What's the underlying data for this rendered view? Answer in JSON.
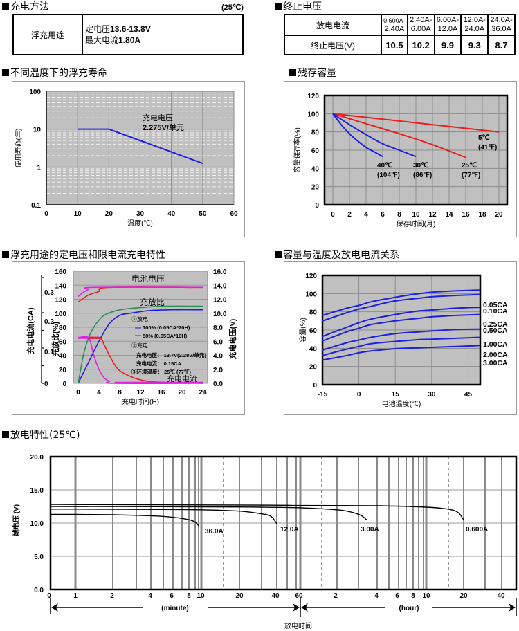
{
  "charging_method": {
    "title": "充电方法",
    "temp_note": "(25℃)",
    "row_label": "浮充用途",
    "line1_label": "定电压",
    "line1_value": "13.6-13.8V",
    "line2_label": "最大电流",
    "line2_value": "1.80A"
  },
  "cutoff_voltage": {
    "title": "终止电压",
    "header_label": "放电电流",
    "row_label": "终止电压(V)",
    "columns": [
      {
        "current_top": "0.600A-",
        "current_bottom": "2.40A",
        "voltage": "10.5"
      },
      {
        "current_top": "2.40A-",
        "current_bottom": "6.00A",
        "voltage": "10.2"
      },
      {
        "current_top": "6.00A-",
        "current_bottom": "12.0A",
        "voltage": "9.9"
      },
      {
        "current_top": "12.0A-",
        "current_bottom": "24.0A",
        "voltage": "9.3"
      },
      {
        "current_top": "24.0A-",
        "current_bottom": "36.0A",
        "voltage": "8.7"
      }
    ]
  },
  "chart_data": [
    {
      "id": "float-life",
      "type": "line",
      "title": "不同温度下的浮充寿命",
      "xlabel": "温度(℃)",
      "ylabel": "使用寿命(年)",
      "yscale": "log",
      "xlim": [
        0,
        60
      ],
      "ylim": [
        0.1,
        100
      ],
      "xticks": [
        "0",
        "10",
        "20",
        "30",
        "40",
        "50",
        "60"
      ],
      "yticks": [
        "0.1",
        "1",
        "10",
        "100"
      ],
      "annotation": [
        "充电电压",
        "2.275V/单元"
      ],
      "series": [
        {
          "name": "life",
          "color": "#1f1fe0",
          "x": [
            10,
            20,
            30,
            40,
            50
          ],
          "y": [
            10,
            10,
            5,
            2.5,
            1.25
          ]
        }
      ]
    },
    {
      "id": "residual-capacity",
      "type": "line",
      "title": "残存容量",
      "xlabel": "保存时间(月)",
      "ylabel": "容量保存率(%)",
      "xlim": [
        0,
        20
      ],
      "ylim": [
        0,
        120
      ],
      "xticks": [
        "0",
        "2",
        "4",
        "6",
        "8",
        "10",
        "12",
        "14",
        "16",
        "18",
        "20"
      ],
      "yticks": [
        "0",
        "20",
        "40",
        "60",
        "80",
        "100",
        "120"
      ],
      "series": [
        {
          "name": "5℃",
          "label2": "(41℉)",
          "color": "#ee1c1c",
          "x": [
            0,
            20
          ],
          "y": [
            100,
            80
          ]
        },
        {
          "name": "25℃",
          "label2": "(77℉)",
          "color": "#ee1c1c",
          "x": [
            0,
            4,
            8,
            12,
            16
          ],
          "y": [
            100,
            89,
            78,
            66,
            52
          ]
        },
        {
          "name": "30℃",
          "label2": "(86℉)",
          "color": "#1f1fe0",
          "x": [
            0,
            2,
            4,
            6,
            8,
            10
          ],
          "y": [
            100,
            88,
            77,
            67,
            60,
            53
          ]
        },
        {
          "name": "40℃",
          "label2": "(104℉)",
          "color": "#1f1fe0",
          "x": [
            0,
            1,
            2,
            3,
            4,
            5,
            6
          ],
          "y": [
            100,
            88,
            78,
            70,
            63,
            58,
            53
          ]
        }
      ]
    },
    {
      "id": "charge-characteristics",
      "type": "line",
      "title": "浮充用途的定电压和限电流充电特性",
      "xlabel": "充电时间(H)",
      "ylabel_left_outer": "充电电流(CA)",
      "ylabel_left": "充放比(%)",
      "ylabel_right": "充电电压(V)",
      "xlim": [
        0,
        24
      ],
      "ylim_left": [
        0,
        160
      ],
      "ylim_right": [
        0,
        16
      ],
      "ylim_current": [
        0,
        0.3
      ],
      "xticks": [
        "0",
        "4",
        "8",
        "12",
        "16",
        "20",
        "24"
      ],
      "yticks_left": [
        "0",
        "20",
        "40",
        "60",
        "80",
        "100",
        "120",
        "140",
        "160"
      ],
      "yticks_right": [
        "0.0",
        "2.0",
        "4.0",
        "6.0",
        "8.0",
        "10.0",
        "12.0",
        "14.0",
        "16.0"
      ],
      "yticks_current": [
        "0",
        "0.1",
        "0.2",
        "0.3"
      ],
      "annotations": {
        "battery_voltage": "电池电压",
        "charge_ratio": "充放比",
        "charge_current": "充电电流",
        "legend_discharge": "①放电",
        "legend_100": "100% (0.05CA*20H)",
        "legend_50": "50% (0.05CA*10H)",
        "legend_charge": "②充电",
        "charge_voltage": "充电电压： 13.7V(2.28V/单元)",
        "charge_current_val": "充电电流： 0.15CA",
        "ambient": "③环境温度： 25℃ (77℉)"
      },
      "series": [
        {
          "name": "voltage-100%",
          "axis": "right",
          "color": "#ee1c1c",
          "x": [
            0,
            2,
            4,
            6,
            24
          ],
          "y": [
            11.6,
            12.6,
            13.1,
            13.7,
            13.7
          ]
        },
        {
          "name": "voltage-50%",
          "axis": "right",
          "color": "#e020e0",
          "x": [
            0,
            1,
            2,
            3,
            24
          ],
          "y": [
            12.4,
            13.0,
            13.4,
            13.7,
            13.7
          ]
        },
        {
          "name": "ratio-100%",
          "axis": "left",
          "color": "#1f1fe0",
          "x": [
            0,
            2,
            4,
            6,
            8,
            10,
            14,
            18,
            24
          ],
          "y": [
            0,
            30,
            60,
            85,
            97,
            100,
            104,
            105,
            105
          ]
        },
        {
          "name": "ratio-50%",
          "axis": "left",
          "color": "#2e8b57",
          "x": [
            0,
            1,
            2,
            3,
            4,
            5,
            7,
            9,
            12,
            16,
            24
          ],
          "y": [
            0,
            40,
            65,
            80,
            90,
            97,
            103,
            106,
            108,
            110,
            110
          ]
        },
        {
          "name": "current-100%",
          "axis": "left",
          "color": "#ee1c1c",
          "x": [
            0,
            4,
            5,
            6,
            7,
            8,
            10,
            12,
            15,
            24
          ],
          "y": [
            65,
            65,
            55,
            40,
            27,
            18,
            10,
            5,
            2,
            0
          ]
        },
        {
          "name": "current-50%",
          "axis": "left",
          "color": "#e020e0",
          "x": [
            0,
            2,
            3,
            4,
            5,
            6,
            7,
            24
          ],
          "y": [
            65,
            65,
            40,
            20,
            8,
            3,
            0,
            0
          ]
        }
      ]
    },
    {
      "id": "capacity-temperature",
      "type": "line",
      "title": "容量与温度及放电电流关系",
      "xlabel": "电池温度(℃)",
      "ylabel": "容量(%)",
      "xlim": [
        -15,
        50
      ],
      "ylim": [
        0,
        120
      ],
      "xticks": [
        "-15",
        "0",
        "15",
        "30",
        "45"
      ],
      "yticks": [
        "0",
        "20",
        "40",
        "60",
        "80",
        "100",
        "120"
      ],
      "x": [
        -15,
        -5,
        0,
        5,
        15,
        25,
        30,
        40,
        50
      ],
      "series": [
        {
          "name": "0.05CA",
          "color": "#1f1fe0",
          "y": [
            76,
            84,
            87,
            91,
            96,
            100,
            101.5,
            103,
            104
          ]
        },
        {
          "name": "0.10CA",
          "color": "#1f1fe0",
          "y": [
            70,
            79,
            83,
            86,
            92,
            95,
            96.5,
            98,
            99
          ]
        },
        {
          "name": "0.25CA",
          "color": "#1f1fe0",
          "y": [
            53,
            63,
            68,
            72,
            77,
            81,
            82,
            84,
            85
          ]
        },
        {
          "name": "0.50CA",
          "color": "#1f1fe0",
          "y": [
            48,
            58,
            62,
            66,
            70,
            73,
            74.5,
            76,
            77
          ]
        },
        {
          "name": "1.00CA",
          "color": "#1f1fe0",
          "y": [
            38,
            46,
            49,
            52,
            56,
            58,
            59,
            60.5,
            61
          ]
        },
        {
          "name": "2.00CA",
          "color": "#1f1fe0",
          "y": [
            32,
            39,
            42,
            45,
            47.5,
            49.5,
            50,
            51,
            52
          ]
        },
        {
          "name": "3.00CA",
          "color": "#1f1fe0",
          "y": [
            27,
            32,
            35,
            37,
            39.5,
            40.5,
            41,
            42,
            43
          ]
        }
      ]
    },
    {
      "id": "discharge-characteristics",
      "type": "line",
      "title": "放电特性(25℃)",
      "xlabel": "放电时间",
      "ylabel": "端电压 (V)",
      "xscale": "log-minutes-then-hours",
      "ylim": [
        0,
        20
      ],
      "yticks": [
        "0.0",
        "5.0",
        "10.0",
        "15.0",
        "20.0"
      ],
      "xticks_minute": [
        "0",
        "1",
        "2",
        "4",
        "6",
        "8",
        "10",
        "20",
        "40",
        "60"
      ],
      "xticks_hour": [
        "2",
        "4",
        "6",
        "8",
        "10",
        "20",
        "40"
      ],
      "unit_minute": "(minute)",
      "unit_hour": "(hour)",
      "series": [
        {
          "name": "36.0A",
          "color": "#000000",
          "x_min": [
            0,
            1,
            2,
            4,
            6,
            8,
            9,
            9.6
          ],
          "y": [
            11.3,
            11.3,
            11.25,
            11.1,
            10.9,
            10.5,
            10.1,
            9.5
          ]
        },
        {
          "name": "12.0A",
          "color": "#000000",
          "x_min": [
            0,
            1,
            5,
            10,
            20,
            30,
            36,
            40
          ],
          "y": [
            12.1,
            12.1,
            12.05,
            12.0,
            11.8,
            11.4,
            11.0,
            9.9
          ]
        },
        {
          "name": "3.00A",
          "color": "#000000",
          "x_min": [
            0,
            10,
            30,
            60,
            120,
            150,
            180,
            200
          ],
          "y": [
            12.5,
            12.45,
            12.4,
            12.3,
            12.0,
            11.7,
            11.2,
            10.5
          ]
        },
        {
          "name": "0.600A",
          "color": "#000000",
          "x_min": [
            0,
            30,
            60,
            240,
            600,
            900,
            1080,
            1200
          ],
          "y": [
            12.8,
            12.7,
            12.65,
            12.6,
            12.4,
            12.1,
            11.6,
            10.5
          ]
        }
      ]
    }
  ]
}
